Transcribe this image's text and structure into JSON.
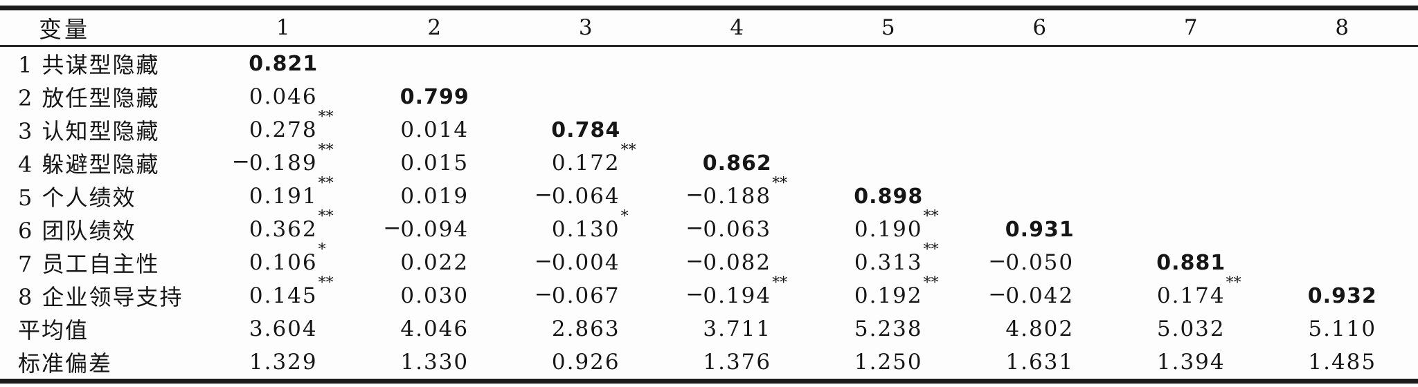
{
  "table": {
    "description": "correlation-matrix",
    "header": {
      "variable_label": "变量",
      "columns": [
        "1",
        "2",
        "3",
        "4",
        "5",
        "6",
        "7",
        "8"
      ]
    },
    "rows": [
      {
        "label": "1 共谋型隐藏",
        "cells": [
          {
            "value": "0.821",
            "bold": true,
            "sig": ""
          },
          null,
          null,
          null,
          null,
          null,
          null,
          null
        ]
      },
      {
        "label": "2 放任型隐藏",
        "cells": [
          {
            "value": "0.046",
            "bold": false,
            "sig": ""
          },
          {
            "value": "0.799",
            "bold": true,
            "sig": ""
          },
          null,
          null,
          null,
          null,
          null,
          null
        ]
      },
      {
        "label": "3 认知型隐藏",
        "cells": [
          {
            "value": "0.278",
            "bold": false,
            "sig": "**"
          },
          {
            "value": "0.014",
            "bold": false,
            "sig": ""
          },
          {
            "value": "0.784",
            "bold": true,
            "sig": ""
          },
          null,
          null,
          null,
          null,
          null
        ]
      },
      {
        "label": "4 躲避型隐藏",
        "cells": [
          {
            "value": "−0.189",
            "bold": false,
            "sig": "**"
          },
          {
            "value": "0.015",
            "bold": false,
            "sig": ""
          },
          {
            "value": "0.172",
            "bold": false,
            "sig": "**"
          },
          {
            "value": "0.862",
            "bold": true,
            "sig": ""
          },
          null,
          null,
          null,
          null
        ]
      },
      {
        "label": "5 个人绩效",
        "cells": [
          {
            "value": "0.191",
            "bold": false,
            "sig": "**"
          },
          {
            "value": "0.019",
            "bold": false,
            "sig": ""
          },
          {
            "value": "−0.064",
            "bold": false,
            "sig": ""
          },
          {
            "value": "−0.188",
            "bold": false,
            "sig": "**"
          },
          {
            "value": "0.898",
            "bold": true,
            "sig": ""
          },
          null,
          null,
          null
        ]
      },
      {
        "label": "6 团队绩效",
        "cells": [
          {
            "value": "0.362",
            "bold": false,
            "sig": "**"
          },
          {
            "value": "−0.094",
            "bold": false,
            "sig": ""
          },
          {
            "value": "0.130",
            "bold": false,
            "sig": "*"
          },
          {
            "value": "−0.063",
            "bold": false,
            "sig": ""
          },
          {
            "value": "0.190",
            "bold": false,
            "sig": "**"
          },
          {
            "value": "0.931",
            "bold": true,
            "sig": ""
          },
          null,
          null
        ]
      },
      {
        "label": "7 员工自主性",
        "cells": [
          {
            "value": "0.106",
            "bold": false,
            "sig": "*"
          },
          {
            "value": "0.022",
            "bold": false,
            "sig": ""
          },
          {
            "value": "−0.004",
            "bold": false,
            "sig": ""
          },
          {
            "value": "−0.082",
            "bold": false,
            "sig": ""
          },
          {
            "value": "0.313",
            "bold": false,
            "sig": "**"
          },
          {
            "value": "−0.050",
            "bold": false,
            "sig": ""
          },
          {
            "value": "0.881",
            "bold": true,
            "sig": ""
          },
          null
        ]
      },
      {
        "label": "8 企业领导支持",
        "cells": [
          {
            "value": "0.145",
            "bold": false,
            "sig": "**"
          },
          {
            "value": "0.030",
            "bold": false,
            "sig": ""
          },
          {
            "value": "−0.067",
            "bold": false,
            "sig": ""
          },
          {
            "value": "−0.194",
            "bold": false,
            "sig": "**"
          },
          {
            "value": "0.192",
            "bold": false,
            "sig": "**"
          },
          {
            "value": "−0.042",
            "bold": false,
            "sig": ""
          },
          {
            "value": "0.174",
            "bold": false,
            "sig": "**"
          },
          {
            "value": "0.932",
            "bold": true,
            "sig": ""
          }
        ]
      },
      {
        "label": "平均值",
        "cells": [
          {
            "value": "3.604",
            "bold": false,
            "sig": ""
          },
          {
            "value": "4.046",
            "bold": false,
            "sig": ""
          },
          {
            "value": "2.863",
            "bold": false,
            "sig": ""
          },
          {
            "value": "3.711",
            "bold": false,
            "sig": ""
          },
          {
            "value": "5.238",
            "bold": false,
            "sig": ""
          },
          {
            "value": "4.802",
            "bold": false,
            "sig": ""
          },
          {
            "value": "5.032",
            "bold": false,
            "sig": ""
          },
          {
            "value": "5.110",
            "bold": false,
            "sig": ""
          }
        ]
      },
      {
        "label": "标准偏差",
        "cells": [
          {
            "value": "1.329",
            "bold": false,
            "sig": ""
          },
          {
            "value": "1.330",
            "bold": false,
            "sig": ""
          },
          {
            "value": "0.926",
            "bold": false,
            "sig": ""
          },
          {
            "value": "1.376",
            "bold": false,
            "sig": ""
          },
          {
            "value": "1.250",
            "bold": false,
            "sig": ""
          },
          {
            "value": "1.631",
            "bold": false,
            "sig": ""
          },
          {
            "value": "1.394",
            "bold": false,
            "sig": ""
          },
          {
            "value": "1.485",
            "bold": false,
            "sig": ""
          }
        ]
      }
    ],
    "colors": {
      "text": "#161616",
      "rule": "#1b1b1b",
      "background": "#fdfdfd"
    }
  }
}
